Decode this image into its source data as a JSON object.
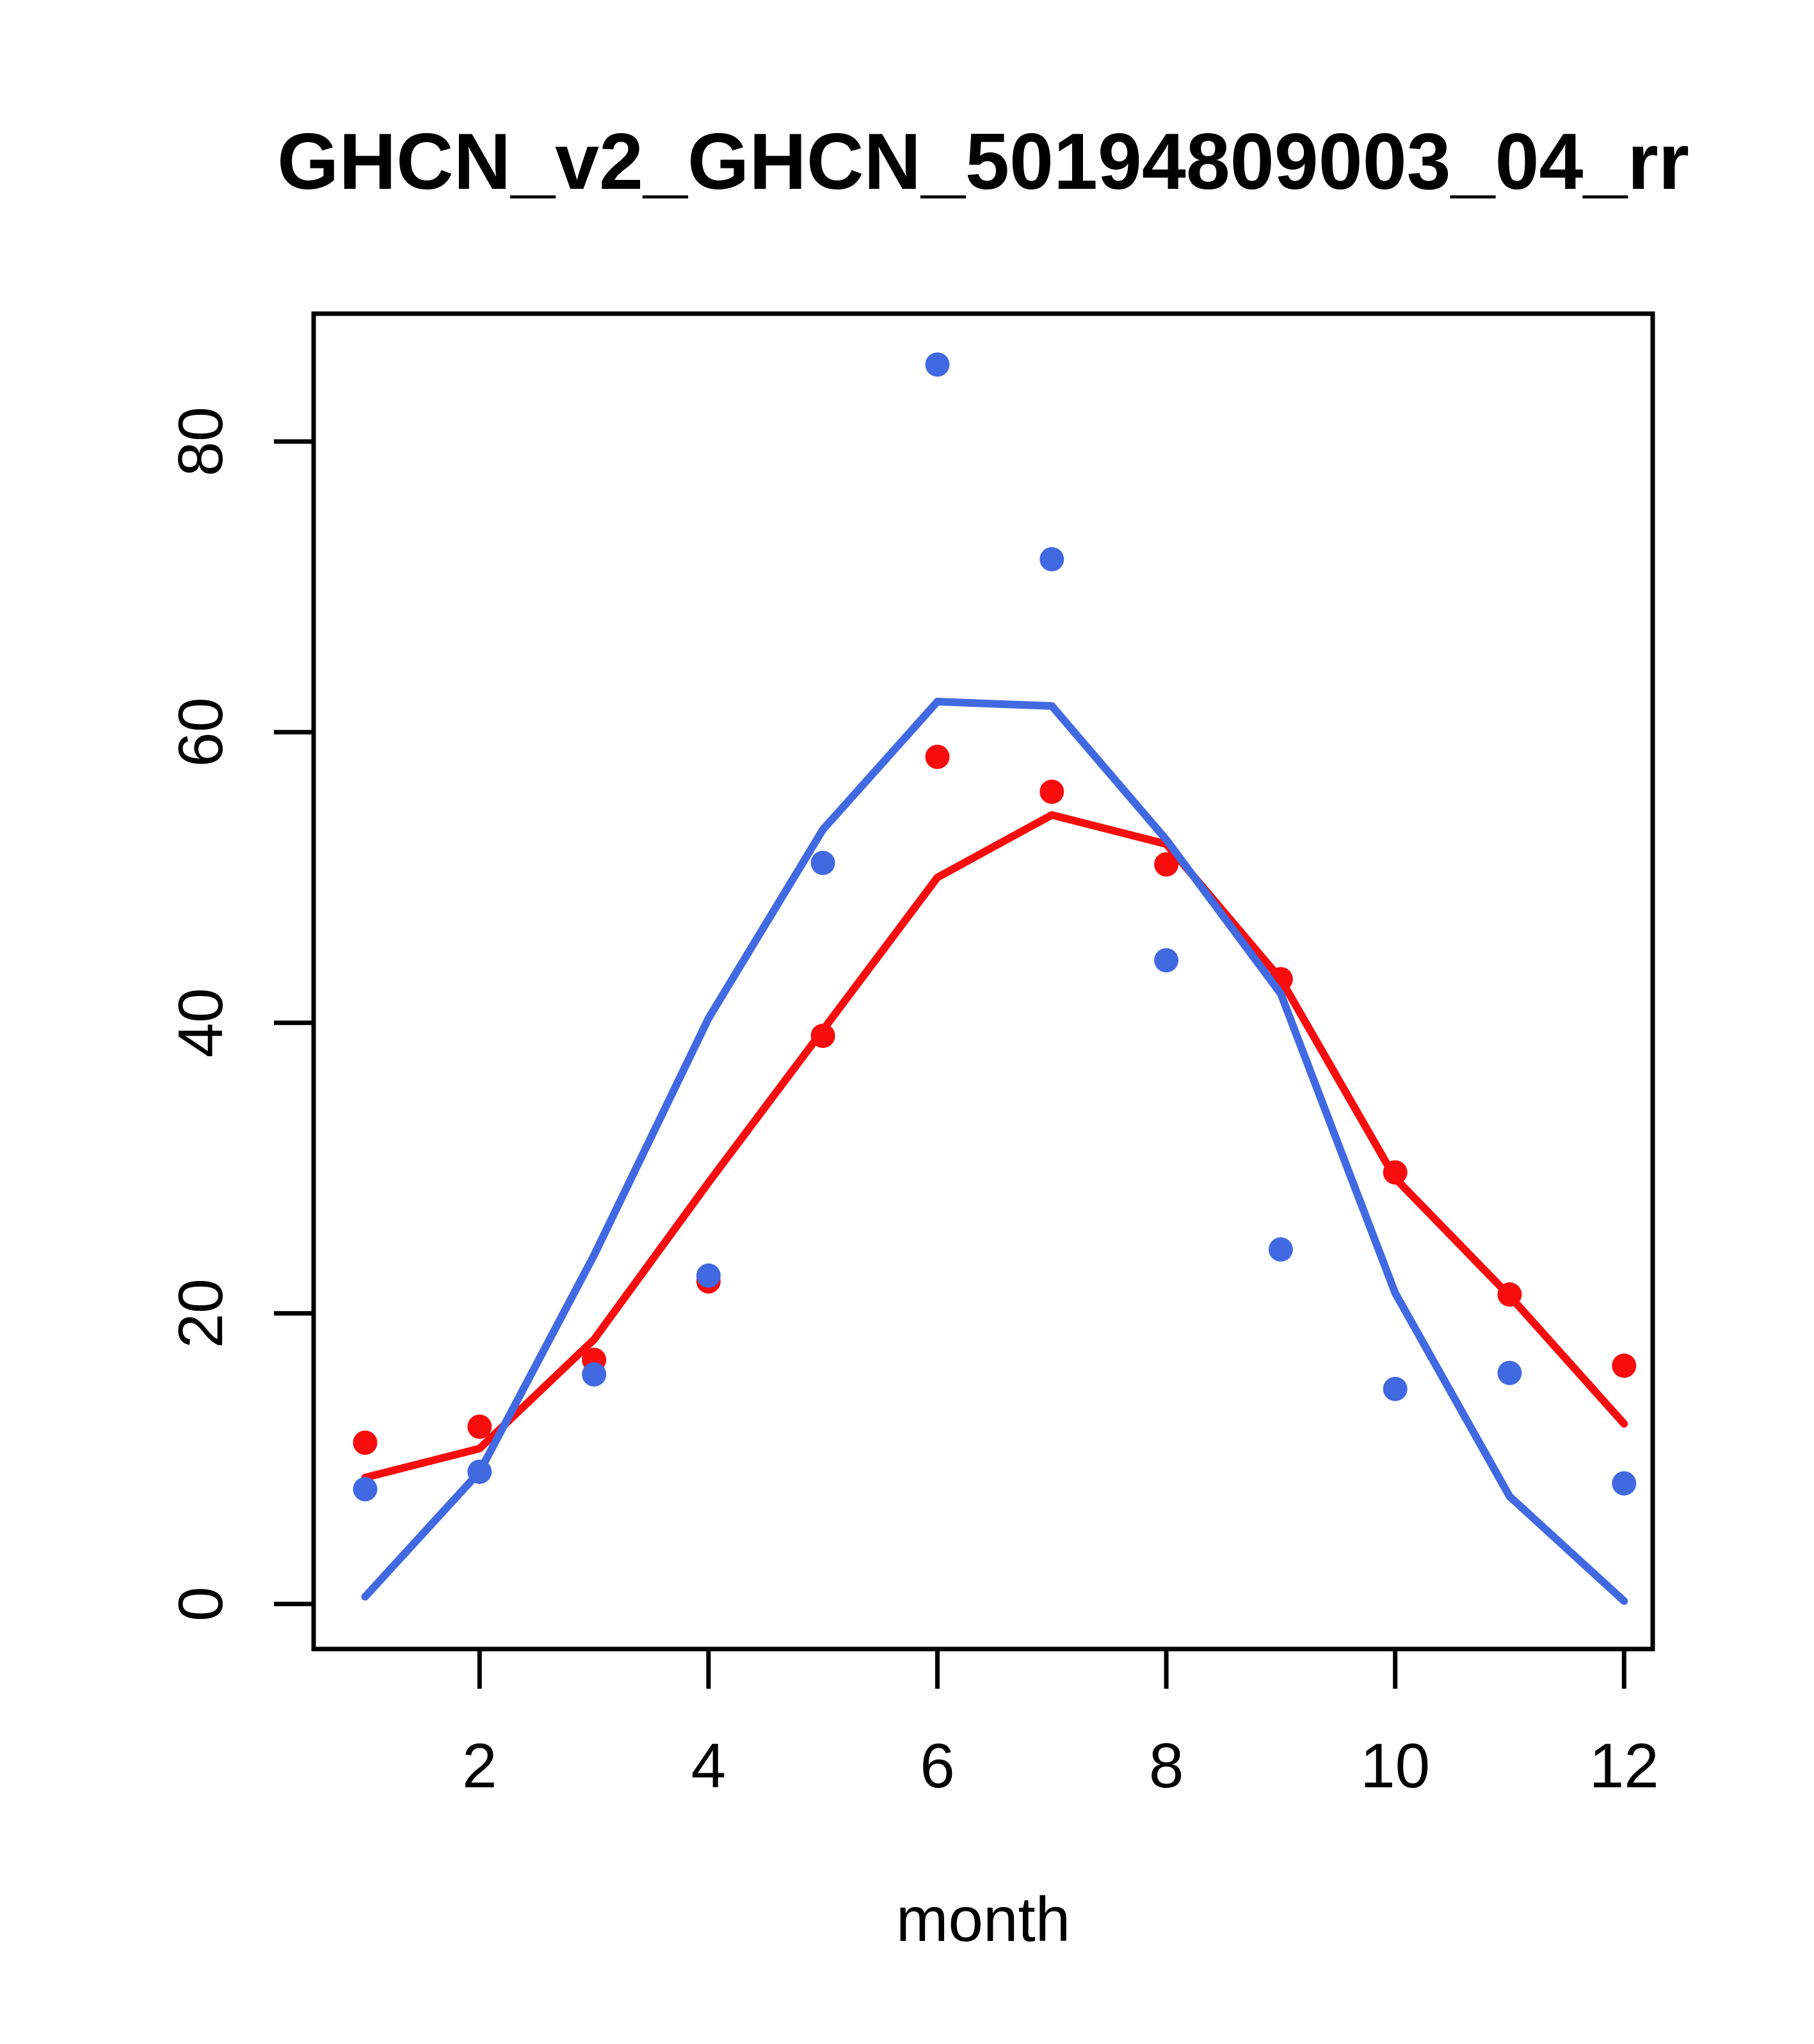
{
  "figure": {
    "title": "GHCN_v2_GHCN_50194809003_04_rr",
    "x_axis_label": "month",
    "background_color": "#FFFFFF",
    "frame_color": "#000000"
  },
  "chart_data": {
    "type": "scatter",
    "title": "GHCN_v2_GHCN_50194809003_04_rr",
    "xlabel": "month",
    "ylabel": "",
    "xlim": [
      0.55,
      12.25
    ],
    "ylim": [
      -3.1,
      88.8
    ],
    "x_ticks": [
      2,
      4,
      6,
      8,
      10,
      12
    ],
    "y_ticks": [
      0,
      20,
      40,
      60,
      80
    ],
    "grid": false,
    "legend": "none",
    "x": [
      1,
      2,
      3,
      4,
      5,
      6,
      7,
      8,
      9,
      10,
      11,
      12
    ],
    "colors": {
      "blue": "#4169E1",
      "red": "#F70D0D"
    },
    "series": [
      {
        "name": "red-fit-line",
        "style": "line",
        "color": "#F70D0D",
        "values": [
          8.7,
          10.7,
          18.2,
          29.0,
          39.5,
          50.0,
          54.3,
          52.3,
          43.0,
          29.3,
          21.2,
          12.4
        ]
      },
      {
        "name": "red-monthly-points",
        "style": "points",
        "color": "#F70D0D",
        "values": [
          11.1,
          12.2,
          16.8,
          22.2,
          39.1,
          58.3,
          55.9,
          50.9,
          43.0,
          29.7,
          21.3,
          16.4
        ]
      },
      {
        "name": "blue-fit-line",
        "style": "line",
        "color": "#4169E1",
        "values": [
          0.5,
          9.1,
          24.0,
          40.3,
          53.3,
          62.1,
          61.8,
          52.6,
          42.0,
          21.4,
          7.4,
          0.2
        ]
      },
      {
        "name": "blue-monthly-points",
        "style": "points",
        "color": "#4169E1",
        "values": [
          7.9,
          9.1,
          15.8,
          22.6,
          51.0,
          85.3,
          71.9,
          44.3,
          24.4,
          14.8,
          15.9,
          8.3
        ]
      }
    ]
  }
}
